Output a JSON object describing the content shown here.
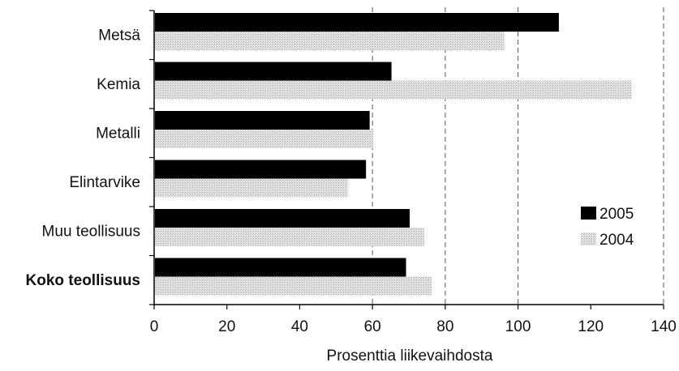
{
  "chart_data": {
    "type": "bar",
    "orientation": "horizontal",
    "title": "",
    "xlabel": "Prosenttia liikevaihdosta",
    "ylabel": "",
    "xlim": [
      0,
      140
    ],
    "xticks": [
      "0",
      "20",
      "40",
      "60",
      "80",
      "100",
      "120",
      "140"
    ],
    "categories": [
      "Metsä",
      "Kemia",
      "Metalli",
      "Elintarvike",
      "Muu teollisuus",
      "Koko teollisuus"
    ],
    "bold_categories": [
      "Koko teollisuus"
    ],
    "series": [
      {
        "name": "2005",
        "color": "#000000",
        "values": [
          111,
          65,
          59,
          58,
          70,
          69
        ]
      },
      {
        "name": "2004",
        "color": "#d8d8d8",
        "values": [
          96,
          131,
          60,
          53,
          74,
          76
        ]
      }
    ],
    "grid": "vertical dashed at 60, 80, 100, 140",
    "legend_position": "right"
  }
}
